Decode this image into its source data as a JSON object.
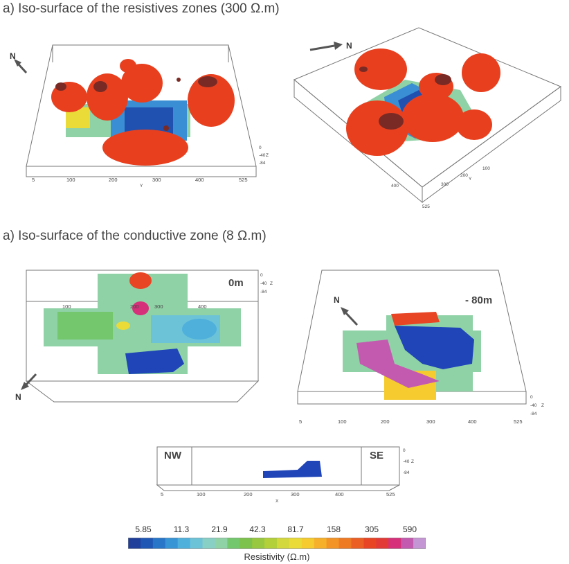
{
  "headings": {
    "resistive": "a) Iso-surface of the resistives zones (300 Ω.m)",
    "conductive": "a) Iso-surface of the conductive zone (8 Ω.m)"
  },
  "panels": {
    "p1": {
      "north": "N",
      "x_ticks": [
        "5",
        "100",
        "200",
        "300",
        "400",
        "525"
      ],
      "x_label": "Y",
      "z_ticks": [
        "0",
        "-40",
        "-84"
      ],
      "z_label": "Z"
    },
    "p2": {
      "north": "N",
      "y_ticks": [
        "100",
        "200",
        "300",
        "400",
        "525"
      ],
      "y_label": "Y"
    },
    "p3": {
      "north": "N",
      "depth_label": "0m",
      "x_ticks": [
        "100",
        "200",
        "300",
        "400"
      ],
      "z_ticks": [
        "0",
        "-40",
        "-84"
      ],
      "z_label": "Z"
    },
    "p4": {
      "north": "N",
      "depth_label": "- 80m",
      "x_ticks": [
        "5",
        "100",
        "200",
        "300",
        "400",
        "525"
      ],
      "z_ticks": [
        "0",
        "-40",
        "-84"
      ],
      "z_label": "Z"
    },
    "p5": {
      "left_label": "NW",
      "right_label": "SE",
      "x_ticks": [
        "5",
        "100",
        "200",
        "300",
        "400",
        "525"
      ],
      "x_label": "X",
      "z_ticks": [
        "0",
        "-40",
        "-84"
      ],
      "z_label": "Z"
    }
  },
  "colorbar": {
    "ticks": [
      "5.85",
      "11.3",
      "21.9",
      "42.3",
      "81.7",
      "158",
      "305",
      "590"
    ],
    "title": "Resistivity (Ω.m)",
    "colors": [
      "#1f3f9a",
      "#1f57b5",
      "#2876c8",
      "#3795d6",
      "#4fb0dc",
      "#6cc3d8",
      "#88cfc6",
      "#8fd2a6",
      "#74c76d",
      "#7dc24c",
      "#97c83f",
      "#b3d03b",
      "#d3d83c",
      "#eadb38",
      "#f5cb2f",
      "#f7b02a",
      "#f39426",
      "#ef7a24",
      "#ec5f24",
      "#e84525",
      "#e23b37",
      "#d6307a",
      "#c45ab0",
      "#c596d4"
    ]
  }
}
